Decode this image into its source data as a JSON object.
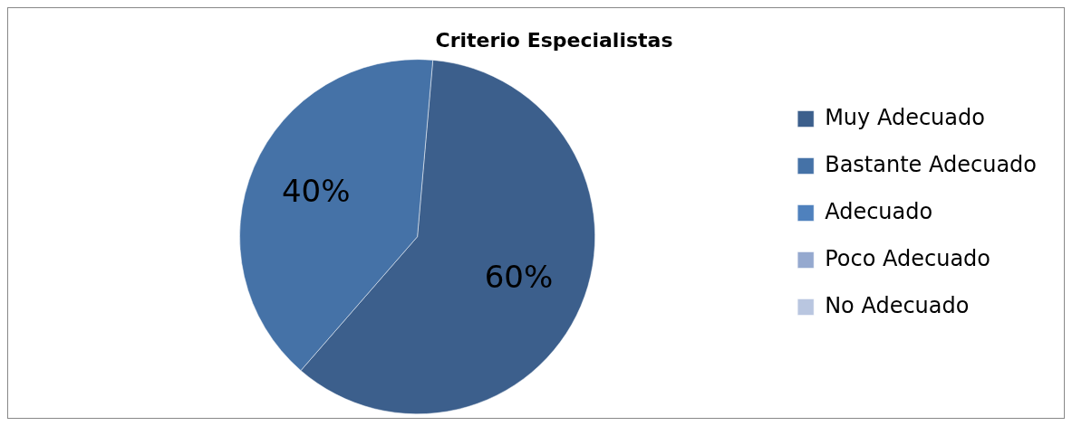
{
  "chart_data": {
    "type": "pie",
    "title": "Criterio Especialistas",
    "categories": [
      "Muy Adecuado",
      "Bastante Adecuado",
      "Adecuado",
      "Poco Adecuado",
      "No Adecuado"
    ],
    "values": [
      60,
      40,
      0,
      0,
      0
    ],
    "colors": [
      "#3c5f8c",
      "#4572a7",
      "#4f81bd",
      "#95a9cf",
      "#b9c6e0"
    ],
    "value_labels": [
      "60%",
      "40%",
      null,
      null,
      null
    ],
    "legend": "right"
  }
}
